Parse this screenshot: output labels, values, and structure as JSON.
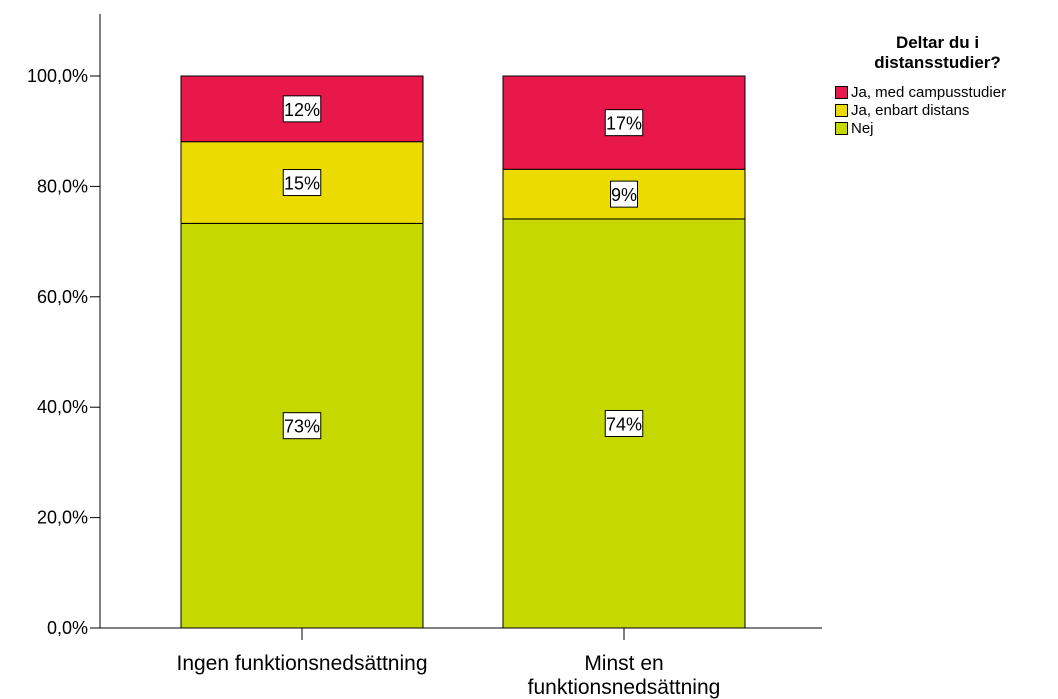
{
  "chart_data": {
    "type": "bar",
    "stacked": true,
    "categories": [
      "Ingen funktionsnedsättning",
      "Minst en funktionsnedsättning"
    ],
    "category_label_lines": [
      [
        "Ingen funktionsnedsättning"
      ],
      [
        "Minst en",
        "funktionsnedsättning"
      ]
    ],
    "series": [
      {
        "name": "Nej",
        "values": [
          73.3,
          74.1
        ],
        "labels": [
          "73%",
          "74%"
        ],
        "color": "#c5d800"
      },
      {
        "name": "Ja, enbart distans",
        "values": [
          14.8,
          9.0
        ],
        "labels": [
          "15%",
          "9%"
        ],
        "color": "#ebdb00"
      },
      {
        "name": "Ja, med campusstudier",
        "values": [
          11.9,
          16.9
        ],
        "labels": [
          "12%",
          "17%"
        ],
        "color": "#e8184a"
      }
    ],
    "y_ticks": [
      0,
      20,
      40,
      60,
      80,
      100
    ],
    "y_tick_labels": [
      "0,0%",
      "20,0%",
      "40,0%",
      "60,0%",
      "80,0%",
      "100,0%"
    ],
    "ylim": [
      0,
      110
    ],
    "xlabel": "",
    "ylabel": "",
    "grid": false,
    "legend": {
      "title_lines": [
        "Deltar du i",
        "distansstudier?"
      ],
      "placement": "top-right",
      "items": [
        {
          "label": "Ja, med campusstudier",
          "color": "#e8184a"
        },
        {
          "label": "Ja, enbart distans",
          "color": "#ebdb00"
        },
        {
          "label": "Nej",
          "color": "#c5d800"
        }
      ]
    }
  }
}
